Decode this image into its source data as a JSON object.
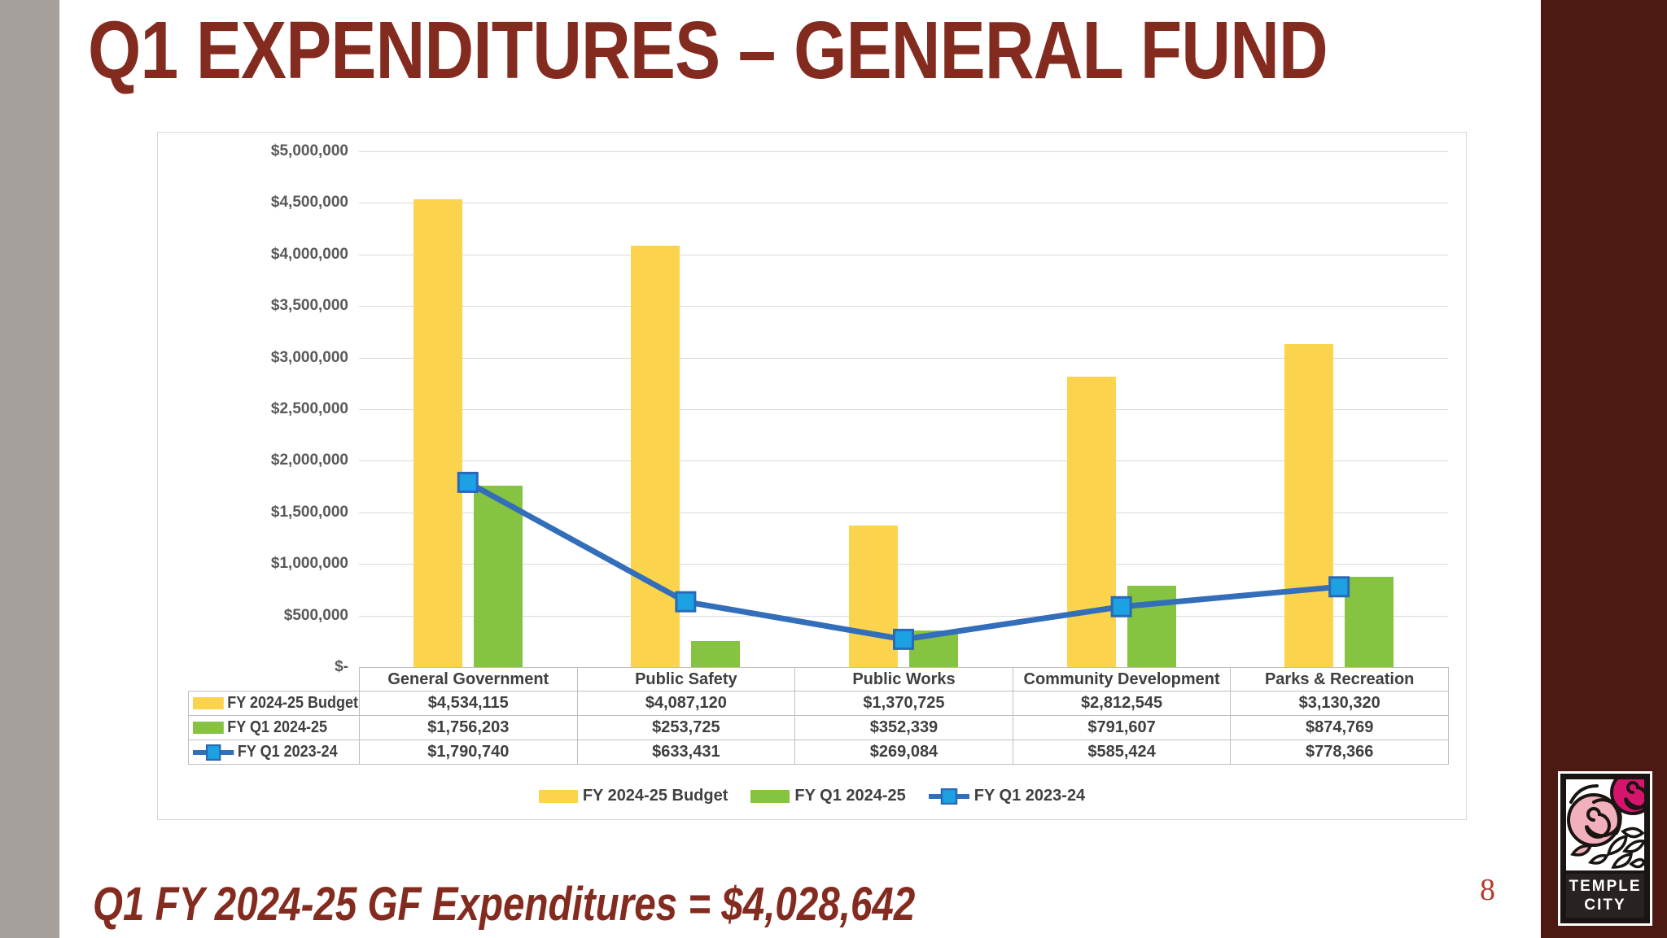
{
  "slide": {
    "title": "Q1 EXPENDITURES – GENERAL FUND",
    "footer_text": "Q1 FY 2024-25 GF Expenditures = $4,028,642",
    "page_number": "8",
    "logo": {
      "line1": "TEMPLE",
      "line2": "CITY"
    }
  },
  "chart_data": {
    "type": "bar",
    "subtype": "clustered-bars-with-line-overlay-and-data-table",
    "categories": [
      "General Government",
      "Public Safety",
      "Public Works",
      "Community Development",
      "Parks & Recreation"
    ],
    "series": [
      {
        "name": "FY 2024-25 Budget",
        "type": "bar",
        "color": "#FBD34D",
        "values": [
          4534115,
          4087120,
          1370725,
          2812545,
          3130320
        ],
        "labels": [
          "$4,534,115",
          "$4,087,120",
          "$1,370,725",
          "$2,812,545",
          "$3,130,320"
        ]
      },
      {
        "name": "FY Q1 2024-25",
        "type": "bar",
        "color": "#85C340",
        "values": [
          1756203,
          253725,
          352339,
          791607,
          874769
        ],
        "labels": [
          "$1,756,203",
          "$253,725",
          "$352,339",
          "$791,607",
          "$874,769"
        ]
      },
      {
        "name": "FY Q1 2023-24",
        "type": "line",
        "color": "#336EBB",
        "marker_fill": "#1CA2E2",
        "marker_shape": "square",
        "values": [
          1790740,
          633431,
          269084,
          585424,
          778366
        ],
        "labels": [
          "$1,790,740",
          "$633,431",
          "$269,084",
          "$585,424",
          "$778,366"
        ]
      }
    ],
    "y_axis": {
      "min": 0,
      "max": 5000000,
      "step": 500000,
      "tick_labels_top_to_bottom": [
        "$5,000,000",
        "$4,500,000",
        "$4,000,000",
        "$3,500,000",
        "$3,000,000",
        "$2,500,000",
        "$2,000,000",
        "$1,500,000",
        "$1,000,000",
        "$500,000",
        "$-"
      ]
    },
    "legend": [
      "FY 2024-25 Budget",
      "FY Q1 2024-25",
      "FY Q1 2023-24"
    ],
    "legend_position": "bottom-center",
    "grid": true,
    "data_table": true
  }
}
